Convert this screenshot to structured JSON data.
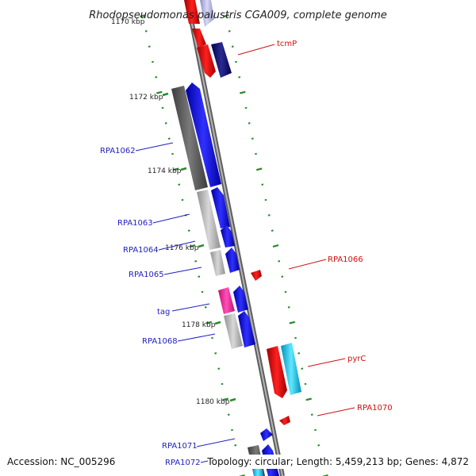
{
  "title": "Rhodopseudomonas palustris CGA009, complete genome",
  "accession_text": "Accession: NC_005296",
  "summary_text": "Topology: circular; Length: 5,459,213 bp; Genes: 4,872",
  "kbp_labels": [
    "1170 kbp",
    "1172 kbp",
    "1174 kbp",
    "1176 kbp",
    "1178 kbp",
    "1180 kbp"
  ],
  "gene_labels": {
    "tcmP": "tcmP",
    "RPA1062": "RPA1062",
    "RPA1063": "RPA1063",
    "RPA1064": "RPA1064",
    "RPA1065": "RPA1065",
    "RPA1066": "RPA1066",
    "tag": "tag",
    "RPA1068": "RPA1068",
    "pyrC": "pyrC",
    "RPA1070": "RPA1070",
    "RPA1071": "RPA1071",
    "RPA1072": "RPA1072"
  },
  "colors": {
    "backbone": "#8a8a8a",
    "forward_cds": "#0000e6",
    "reverse_cds": "#ee0000",
    "gene_grey": "#b8b8b8",
    "gene_dark": "#606060",
    "tag_pink": "#ff2aa0",
    "pyrC_cyan": "#22ccee",
    "tick_green": "#2a8a2a",
    "label_blue": "#1f1fbf",
    "label_red": "#d01010"
  }
}
